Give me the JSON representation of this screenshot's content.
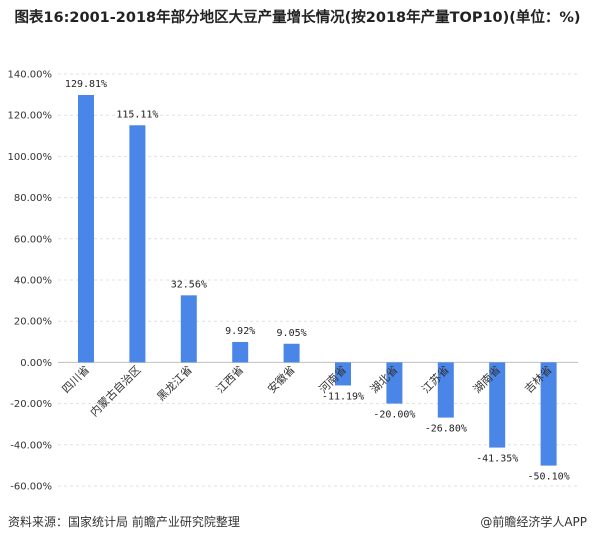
{
  "title": "图表16:2001-2018年部分地区大豆产量增长情况(按2018年产量TOP10)(单位：%)",
  "chart_data": {
    "type": "bar",
    "categories": [
      "四川省",
      "内蒙古自治区",
      "黑龙江省",
      "江西省",
      "安徽省",
      "河南省",
      "湖北省",
      "江苏省",
      "湖南省",
      "吉林省"
    ],
    "values": [
      129.81,
      115.11,
      32.56,
      9.92,
      9.05,
      -11.19,
      -20.0,
      -26.8,
      -41.35,
      -50.1
    ],
    "data_labels": [
      "129.81%",
      "115.11%",
      "32.56%",
      "9.92%",
      "9.05%",
      "-11.19%",
      "-20.00%",
      "-26.80%",
      "-41.35%",
      "-50.10%"
    ],
    "yticks": [
      140,
      120,
      100,
      80,
      60,
      40,
      20,
      0,
      -20,
      -40,
      -60
    ],
    "ytick_labels": [
      "140.00%",
      "120.00%",
      "100.00%",
      "80.00%",
      "60.00%",
      "40.00%",
      "20.00%",
      "0.00%",
      "-20.00%",
      "-40.00%",
      "-60.00%"
    ],
    "ylim": [
      -60,
      140
    ],
    "grid": true,
    "bar_color": "#4a86e8"
  },
  "footer": {
    "source": "资料来源：国家统计局 前瞻产业研究院整理",
    "brand": "@前瞻经济学人APP"
  }
}
